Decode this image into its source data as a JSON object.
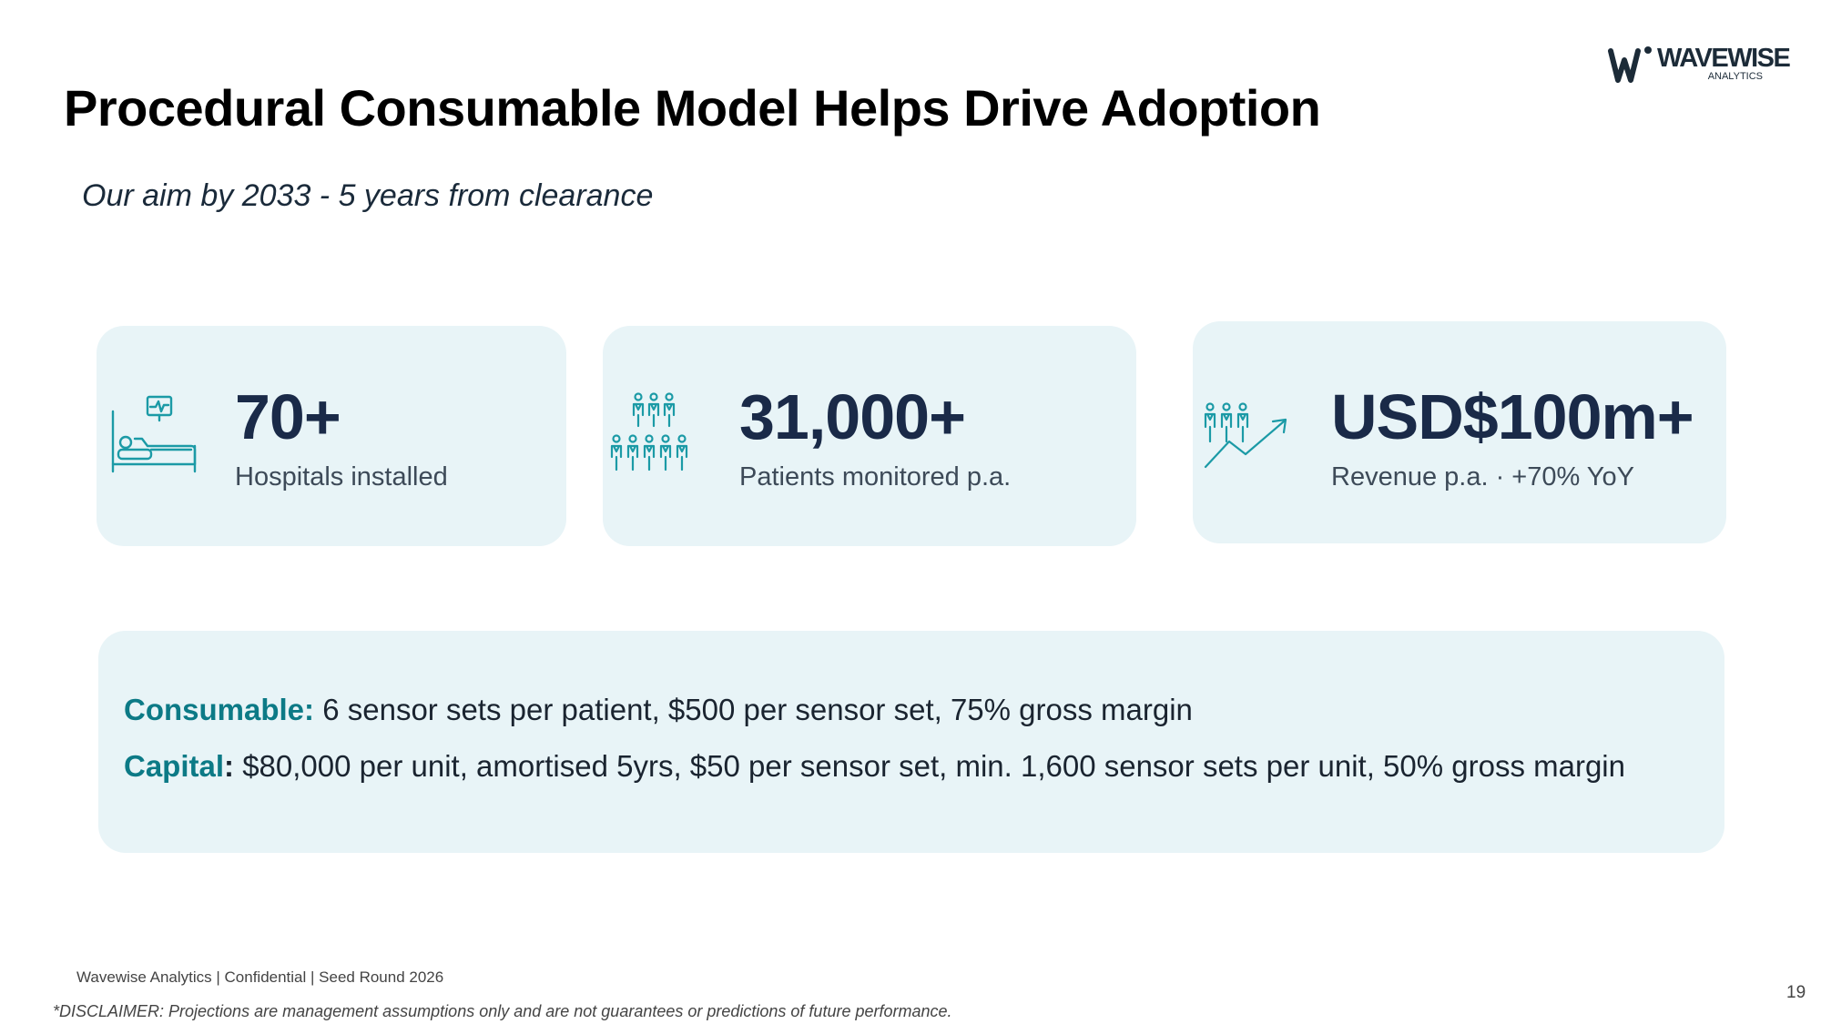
{
  "header": {
    "title": "Procedural Consumable Model Helps Drive Adoption",
    "subtitle": "Our aim by 2033  - 5 years from clearance"
  },
  "logo": {
    "name": "WAVEWISE",
    "sub": "ANALYTICS",
    "color": "#1c2b38"
  },
  "metrics": [
    {
      "value": "70+",
      "label": "Hospitals installed",
      "icon": "hospital-bed-icon"
    },
    {
      "value": "31,000+",
      "label": "Patients monitored p.a.",
      "icon": "patients-group-icon"
    },
    {
      "value": "USD$100m+",
      "label": "Revenue p.a. · +70% YoY",
      "icon": "growth-people-icon"
    }
  ],
  "model": {
    "consumable": {
      "key": "Consumable",
      "colon": ":",
      "text": " 6 sensor sets per patient, $500 per sensor set, 75% gross margin"
    },
    "capital": {
      "key": "Capital",
      "colon": ":",
      "text": " $80,000 per unit, amortised 5yrs, $50 per sensor set, min. 1,600 sensor sets per unit, 50% gross margin"
    }
  },
  "footer": {
    "text": "Wavewise Analytics  |  Confidential  |  Seed Round 2026",
    "disclaimer": "*DISCLAIMER: Projections are management assumptions only and are not guarantees or predictions of future performance.",
    "page_number": "19"
  },
  "colors": {
    "card_bg": "#e8f4f7",
    "accent": "#0c7a86",
    "icon": "#1b9aa6",
    "metric": "#1a2a48"
  }
}
